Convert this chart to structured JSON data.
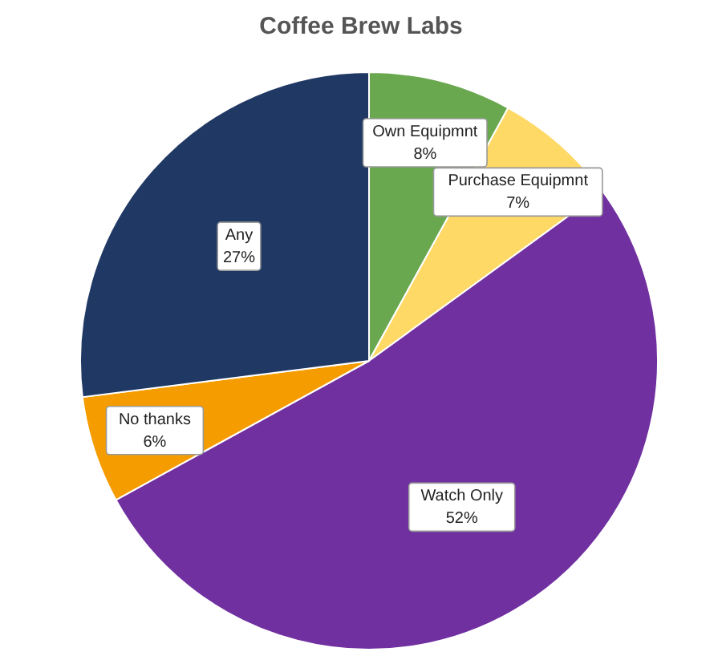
{
  "chart_data": {
    "type": "pie",
    "title": "Coffee Brew Labs",
    "categories": [
      "Own Equipmnt",
      "Purchase Equipmnt",
      "Watch Only",
      "No thanks",
      "Any"
    ],
    "values": [
      8,
      7,
      52,
      6,
      27
    ],
    "value_labels": [
      "8%",
      "7%",
      "52%",
      "6%",
      "27%"
    ],
    "colors": [
      "#6aa84f",
      "#ffd966",
      "#7030a0",
      "#f59c00",
      "#203864"
    ],
    "legend": false
  }
}
